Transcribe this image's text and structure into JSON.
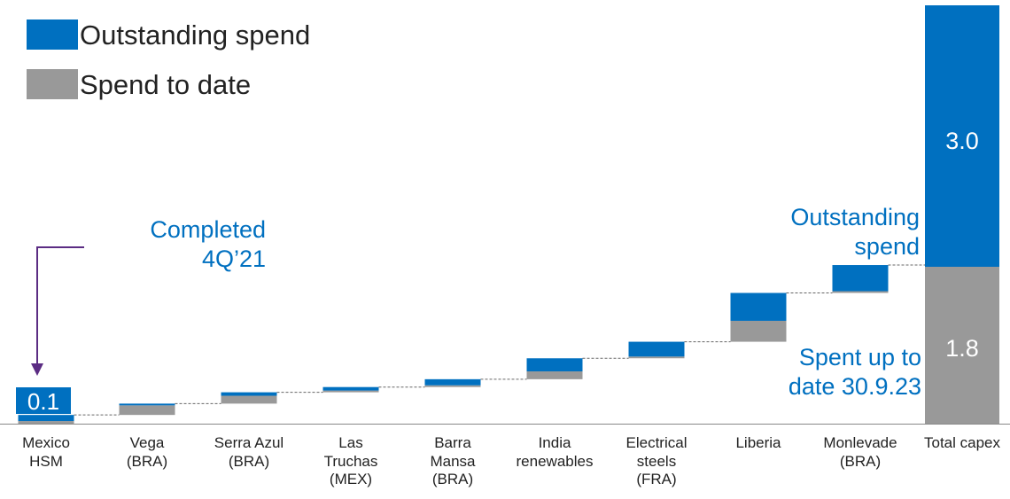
{
  "legend": [
    {
      "label": "Outstanding spend",
      "color": "#0070C0"
    },
    {
      "label": "Spend to date",
      "color": "#999999"
    }
  ],
  "annotations": {
    "completed": "Completed\n4Q’21",
    "outstanding": "Outstanding\nspend",
    "spent": "Spent up to\ndate 30.9.23",
    "text_color": "#0070C0",
    "arrow_color": "#5B2C83"
  },
  "chart_data": {
    "type": "waterfall",
    "unit": "",
    "categories": [
      "Mexico\nHSM",
      "Vega\n(BRA)",
      "Serra Azul\n(BRA)",
      "Las\nTruchas\n(MEX)",
      "Barra\nMansa\n(BRA)",
      "India\nrenewables",
      "Electrical\nsteels\n(FRA)",
      "Liberia",
      "Monlevade\n(BRA)",
      "Total capex"
    ],
    "series": [
      {
        "name": "Spend to date",
        "color": "#999999",
        "values": [
          0.03,
          0.11,
          0.09,
          0.02,
          0.02,
          0.09,
          0.02,
          0.24,
          0.02,
          1.8
        ]
      },
      {
        "name": "Outstanding spend",
        "color": "#0070C0",
        "values": [
          0.07,
          0.02,
          0.04,
          0.04,
          0.07,
          0.15,
          0.17,
          0.32,
          0.3,
          3.0
        ]
      }
    ],
    "data_labels": {
      "0": "0.1",
      "9a": "3.0",
      "9b": "1.8"
    },
    "y_range": [
      0,
      4.8
    ],
    "last_is_total": true,
    "connector_lines": true,
    "grid": false
  }
}
